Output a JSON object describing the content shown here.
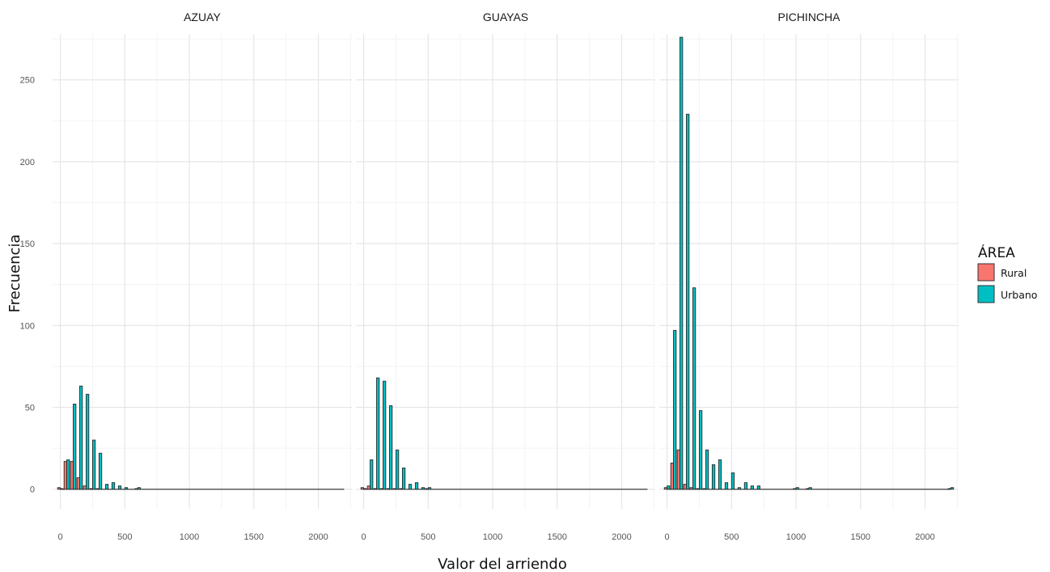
{
  "chart_data": {
    "type": "bar",
    "xlabel": "Valor del arriendo",
    "ylabel": "Frecuencia",
    "xlim": [
      -60,
      2260
    ],
    "ylim": [
      -12,
      278
    ],
    "x_ticks": [
      0,
      500,
      1000,
      1500,
      2000
    ],
    "y_ticks": [
      0,
      50,
      100,
      150,
      200,
      250
    ],
    "grid": true,
    "bin_width": 50,
    "legend": {
      "title": "ÁREA",
      "placement": "right",
      "entries": [
        {
          "name": "Rural",
          "color": "#F8766D"
        },
        {
          "name": "Urbano",
          "color": "#00BFC4"
        }
      ]
    },
    "panels": [
      {
        "title": "AZUAY",
        "series": [
          {
            "name": "Rural",
            "points": [
              [
                0,
                1
              ],
              [
                50,
                17
              ],
              [
                100,
                17
              ],
              [
                150,
                7
              ],
              [
                200,
                2
              ],
              [
                250,
                0
              ],
              [
                300,
                0
              ],
              [
                600,
                0
              ]
            ]
          },
          {
            "name": "Urbano",
            "points": [
              [
                0,
                0
              ],
              [
                50,
                18
              ],
              [
                100,
                52
              ],
              [
                150,
                63
              ],
              [
                200,
                58
              ],
              [
                250,
                30
              ],
              [
                300,
                22
              ],
              [
                350,
                3
              ],
              [
                400,
                4
              ],
              [
                450,
                2
              ],
              [
                500,
                1
              ],
              [
                600,
                1
              ]
            ]
          }
        ]
      },
      {
        "title": "GUAYAS",
        "series": [
          {
            "name": "Rural",
            "points": [
              [
                0,
                1
              ],
              [
                50,
                2
              ],
              [
                100,
                0
              ],
              [
                150,
                0
              ],
              [
                200,
                0
              ],
              [
                250,
                0
              ],
              [
                300,
                0
              ],
              [
                500,
                0
              ]
            ]
          },
          {
            "name": "Urbano",
            "points": [
              [
                0,
                0
              ],
              [
                50,
                18
              ],
              [
                100,
                68
              ],
              [
                150,
                66
              ],
              [
                200,
                51
              ],
              [
                250,
                24
              ],
              [
                300,
                13
              ],
              [
                350,
                3
              ],
              [
                400,
                4
              ],
              [
                450,
                1
              ],
              [
                500,
                1
              ]
            ]
          }
        ]
      },
      {
        "title": "PICHINCHA",
        "series": [
          {
            "name": "Rural",
            "points": [
              [
                0,
                1
              ],
              [
                50,
                16
              ],
              [
                100,
                24
              ],
              [
                150,
                3
              ],
              [
                200,
                1
              ],
              [
                250,
                0
              ],
              [
                300,
                0
              ],
              [
                1000,
                0
              ],
              [
                1100,
                0
              ],
              [
                2200,
                0
              ]
            ]
          },
          {
            "name": "Urbano",
            "points": [
              [
                0,
                2
              ],
              [
                50,
                97
              ],
              [
                100,
                276
              ],
              [
                150,
                229
              ],
              [
                200,
                123
              ],
              [
                250,
                48
              ],
              [
                300,
                24
              ],
              [
                350,
                15
              ],
              [
                400,
                18
              ],
              [
                450,
                4
              ],
              [
                500,
                10
              ],
              [
                550,
                1
              ],
              [
                600,
                4
              ],
              [
                650,
                2
              ],
              [
                700,
                2
              ],
              [
                1000,
                1
              ],
              [
                1100,
                1
              ],
              [
                2200,
                1
              ]
            ]
          }
        ]
      }
    ]
  }
}
